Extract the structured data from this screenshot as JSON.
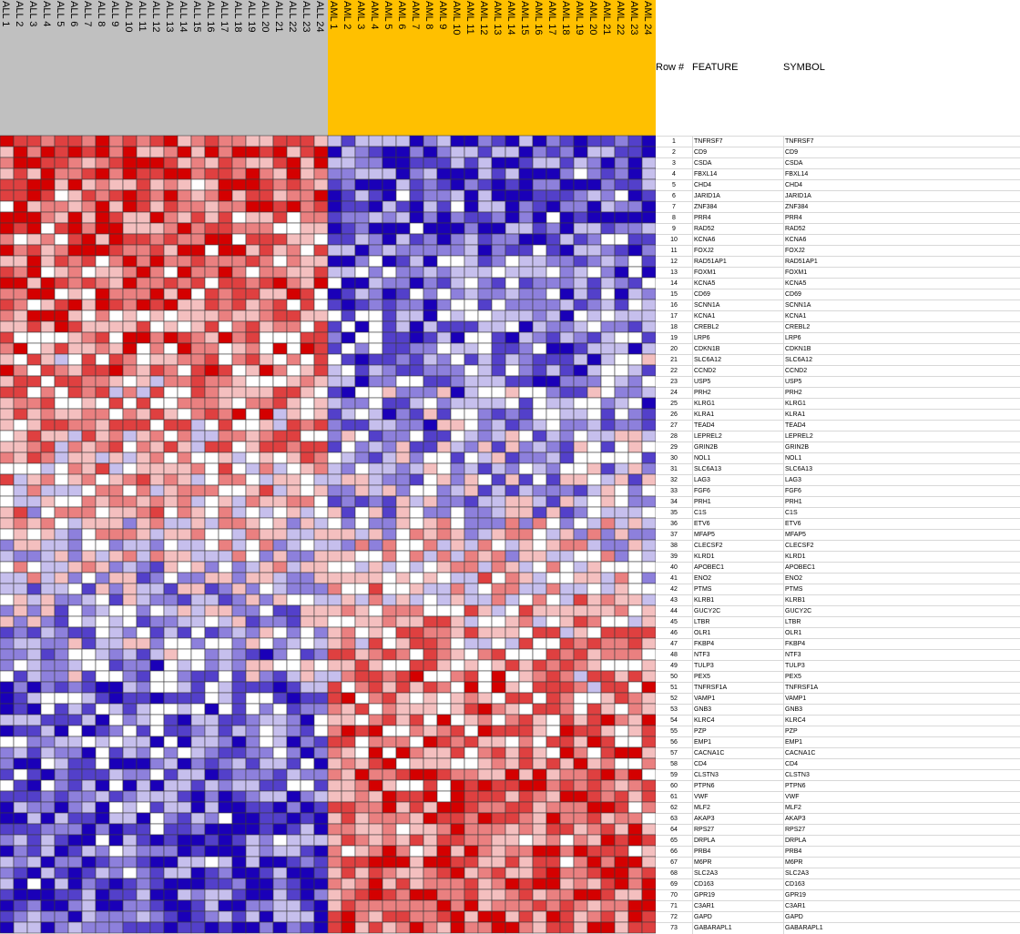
{
  "header": {
    "rownum_label": "Row #",
    "feature_label": "FEATURE",
    "symbol_label": "SYMBOL"
  },
  "colors": {
    "ALL_band": "#c0c0c0",
    "AML_band": "#ffc000",
    "low": "#1a00b8",
    "mid": "#ffffff",
    "high": "#d40000"
  },
  "chart_data": {
    "type": "heatmap",
    "classes": [
      {
        "name": "ALL",
        "count": 24
      },
      {
        "name": "AML",
        "count": 24
      }
    ],
    "columns": [
      "ALL 1",
      "ALL 2",
      "ALL 3",
      "ALL 4",
      "ALL 5",
      "ALL 6",
      "ALL 7",
      "ALL 8",
      "ALL 9",
      "ALL 10",
      "ALL 11",
      "ALL 12",
      "ALL 13",
      "ALL 14",
      "ALL 15",
      "ALL 16",
      "ALL 17",
      "ALL 18",
      "ALL 19",
      "ALL 20",
      "ALL 21",
      "ALL 22",
      "ALL 23",
      "ALL 24",
      "AML 1",
      "AML 2",
      "AML 3",
      "AML 4",
      "AML 5",
      "AML 6",
      "AML 7",
      "AML 8",
      "AML 9",
      "AML 10",
      "AML 11",
      "AML 12",
      "AML 13",
      "AML 14",
      "AML 15",
      "AML 16",
      "AML 17",
      "AML 18",
      "AML 19",
      "AML 20",
      "AML 21",
      "AML 22",
      "AML 23",
      "AML 24"
    ],
    "rows": [
      {
        "n": 1,
        "feature": "TNFRSF7",
        "symbol": "TNFRSF7",
        "trend": 0.95
      },
      {
        "n": 2,
        "feature": "CD9",
        "symbol": "CD9",
        "trend": 0.9
      },
      {
        "n": 3,
        "feature": "CSDA",
        "symbol": "CSDA",
        "trend": 0.9
      },
      {
        "n": 4,
        "feature": "FBXL14",
        "symbol": "FBXL14",
        "trend": 0.85
      },
      {
        "n": 5,
        "feature": "CHD4",
        "symbol": "CHD4",
        "trend": 0.85
      },
      {
        "n": 6,
        "feature": "JARID1A",
        "symbol": "JARID1A",
        "trend": 0.85
      },
      {
        "n": 7,
        "feature": "ZNF384",
        "symbol": "ZNF384",
        "trend": 0.8
      },
      {
        "n": 8,
        "feature": "PRR4",
        "symbol": "PRR4",
        "trend": 0.8
      },
      {
        "n": 9,
        "feature": "RAD52",
        "symbol": "RAD52",
        "trend": 0.8
      },
      {
        "n": 10,
        "feature": "KCNA6",
        "symbol": "KCNA6",
        "trend": 0.75
      },
      {
        "n": 11,
        "feature": "FOXJ2",
        "symbol": "FOXJ2",
        "trend": 0.75
      },
      {
        "n": 12,
        "feature": "RAD51AP1",
        "symbol": "RAD51AP1",
        "trend": 0.75
      },
      {
        "n": 13,
        "feature": "FOXM1",
        "symbol": "FOXM1",
        "trend": 0.7
      },
      {
        "n": 14,
        "feature": "KCNA5",
        "symbol": "KCNA5",
        "trend": 0.7
      },
      {
        "n": 15,
        "feature": "CD69",
        "symbol": "CD69",
        "trend": 0.7
      },
      {
        "n": 16,
        "feature": "SCNN1A",
        "symbol": "SCNN1A",
        "trend": 0.65
      },
      {
        "n": 17,
        "feature": "KCNA1",
        "symbol": "KCNA1",
        "trend": 0.65
      },
      {
        "n": 18,
        "feature": "CREBL2",
        "symbol": "CREBL2",
        "trend": 0.6
      },
      {
        "n": 19,
        "feature": "LRP6",
        "symbol": "LRP6",
        "trend": 0.6
      },
      {
        "n": 20,
        "feature": "CDKN1B",
        "symbol": "CDKN1B",
        "trend": 0.6
      },
      {
        "n": 21,
        "feature": "SLC6A12",
        "symbol": "SLC6A12",
        "trend": 0.55
      },
      {
        "n": 22,
        "feature": "CCND2",
        "symbol": "CCND2",
        "trend": 0.55
      },
      {
        "n": 23,
        "feature": "USP5",
        "symbol": "USP5",
        "trend": 0.5
      },
      {
        "n": 24,
        "feature": "PRH2",
        "symbol": "PRH2",
        "trend": 0.5
      },
      {
        "n": 25,
        "feature": "KLRG1",
        "symbol": "KLRG1",
        "trend": 0.5
      },
      {
        "n": 26,
        "feature": "KLRA1",
        "symbol": "KLRA1",
        "trend": 0.45
      },
      {
        "n": 27,
        "feature": "TEAD4",
        "symbol": "TEAD4",
        "trend": 0.45
      },
      {
        "n": 28,
        "feature": "LEPREL2",
        "symbol": "LEPREL2",
        "trend": 0.4
      },
      {
        "n": 29,
        "feature": "GRIN2B",
        "symbol": "GRIN2B",
        "trend": 0.4
      },
      {
        "n": 30,
        "feature": "NOL1",
        "symbol": "NOL1",
        "trend": 0.35
      },
      {
        "n": 31,
        "feature": "SLC6A13",
        "symbol": "SLC6A13",
        "trend": 0.3
      },
      {
        "n": 32,
        "feature": "LAG3",
        "symbol": "LAG3",
        "trend": 0.3
      },
      {
        "n": 33,
        "feature": "FGF6",
        "symbol": "FGF6",
        "trend": 0.25
      },
      {
        "n": 34,
        "feature": "PRH1",
        "symbol": "PRH1",
        "trend": 0.2
      },
      {
        "n": 35,
        "feature": "C1S",
        "symbol": "C1S",
        "trend": 0.2
      },
      {
        "n": 36,
        "feature": "ETV6",
        "symbol": "ETV6",
        "trend": 0.1
      },
      {
        "n": 37,
        "feature": "MFAP5",
        "symbol": "MFAP5",
        "trend": 0.05
      },
      {
        "n": 38,
        "feature": "CLECSF2",
        "symbol": "CLECSF2",
        "trend": 0.0
      },
      {
        "n": 39,
        "feature": "KLRD1",
        "symbol": "KLRD1",
        "trend": -0.1
      },
      {
        "n": 40,
        "feature": "APOBEC1",
        "symbol": "APOBEC1",
        "trend": -0.15
      },
      {
        "n": 41,
        "feature": "ENO2",
        "symbol": "ENO2",
        "trend": -0.2
      },
      {
        "n": 42,
        "feature": "PTMS",
        "symbol": "PTMS",
        "trend": -0.25
      },
      {
        "n": 43,
        "feature": "KLRB1",
        "symbol": "KLRB1",
        "trend": -0.3
      },
      {
        "n": 44,
        "feature": "GUCY2C",
        "symbol": "GUCY2C",
        "trend": -0.3
      },
      {
        "n": 45,
        "feature": "LTBR",
        "symbol": "LTBR",
        "trend": -0.35
      },
      {
        "n": 46,
        "feature": "OLR1",
        "symbol": "OLR1",
        "trend": -0.4
      },
      {
        "n": 47,
        "feature": "FKBP4",
        "symbol": "FKBP4",
        "trend": -0.4
      },
      {
        "n": 48,
        "feature": "NTF3",
        "symbol": "NTF3",
        "trend": -0.45
      },
      {
        "n": 49,
        "feature": "TULP3",
        "symbol": "TULP3",
        "trend": -0.5
      },
      {
        "n": 50,
        "feature": "PEX5",
        "symbol": "PEX5",
        "trend": -0.5
      },
      {
        "n": 51,
        "feature": "TNFRSF1A",
        "symbol": "TNFRSF1A",
        "trend": -0.55
      },
      {
        "n": 52,
        "feature": "VAMP1",
        "symbol": "VAMP1",
        "trend": -0.55
      },
      {
        "n": 53,
        "feature": "GNB3",
        "symbol": "GNB3",
        "trend": -0.6
      },
      {
        "n": 54,
        "feature": "KLRC4",
        "symbol": "KLRC4",
        "trend": -0.6
      },
      {
        "n": 55,
        "feature": "PZP",
        "symbol": "PZP",
        "trend": -0.6
      },
      {
        "n": 56,
        "feature": "EMP1",
        "symbol": "EMP1",
        "trend": -0.65
      },
      {
        "n": 57,
        "feature": "CACNA1C",
        "symbol": "CACNA1C",
        "trend": -0.65
      },
      {
        "n": 58,
        "feature": "CD4",
        "symbol": "CD4",
        "trend": -0.7
      },
      {
        "n": 59,
        "feature": "CLSTN3",
        "symbol": "CLSTN3",
        "trend": -0.7
      },
      {
        "n": 60,
        "feature": "PTPN6",
        "symbol": "PTPN6",
        "trend": -0.7
      },
      {
        "n": 61,
        "feature": "VWF",
        "symbol": "VWF",
        "trend": -0.75
      },
      {
        "n": 62,
        "feature": "MLF2",
        "symbol": "MLF2",
        "trend": -0.75
      },
      {
        "n": 63,
        "feature": "AKAP3",
        "symbol": "AKAP3",
        "trend": -0.75
      },
      {
        "n": 64,
        "feature": "RPS27",
        "symbol": "RPS27",
        "trend": -0.8
      },
      {
        "n": 65,
        "feature": "DRPLA",
        "symbol": "DRPLA",
        "trend": -0.8
      },
      {
        "n": 66,
        "feature": "PRB4",
        "symbol": "PRB4",
        "trend": -0.8
      },
      {
        "n": 67,
        "feature": "M6PR",
        "symbol": "M6PR",
        "trend": -0.85
      },
      {
        "n": 68,
        "feature": "SLC2A3",
        "symbol": "SLC2A3",
        "trend": -0.85
      },
      {
        "n": 69,
        "feature": "CD163",
        "symbol": "CD163",
        "trend": -0.85
      },
      {
        "n": 70,
        "feature": "GPR19",
        "symbol": "GPR19",
        "trend": -0.9
      },
      {
        "n": 71,
        "feature": "C3AR1",
        "symbol": "C3AR1",
        "trend": -0.9
      },
      {
        "n": 72,
        "feature": "GAPD",
        "symbol": "GAPD",
        "trend": -0.9
      },
      {
        "n": 73,
        "feature": "GABARAPL1",
        "symbol": "GABARAPL1",
        "trend": -0.95
      }
    ]
  }
}
